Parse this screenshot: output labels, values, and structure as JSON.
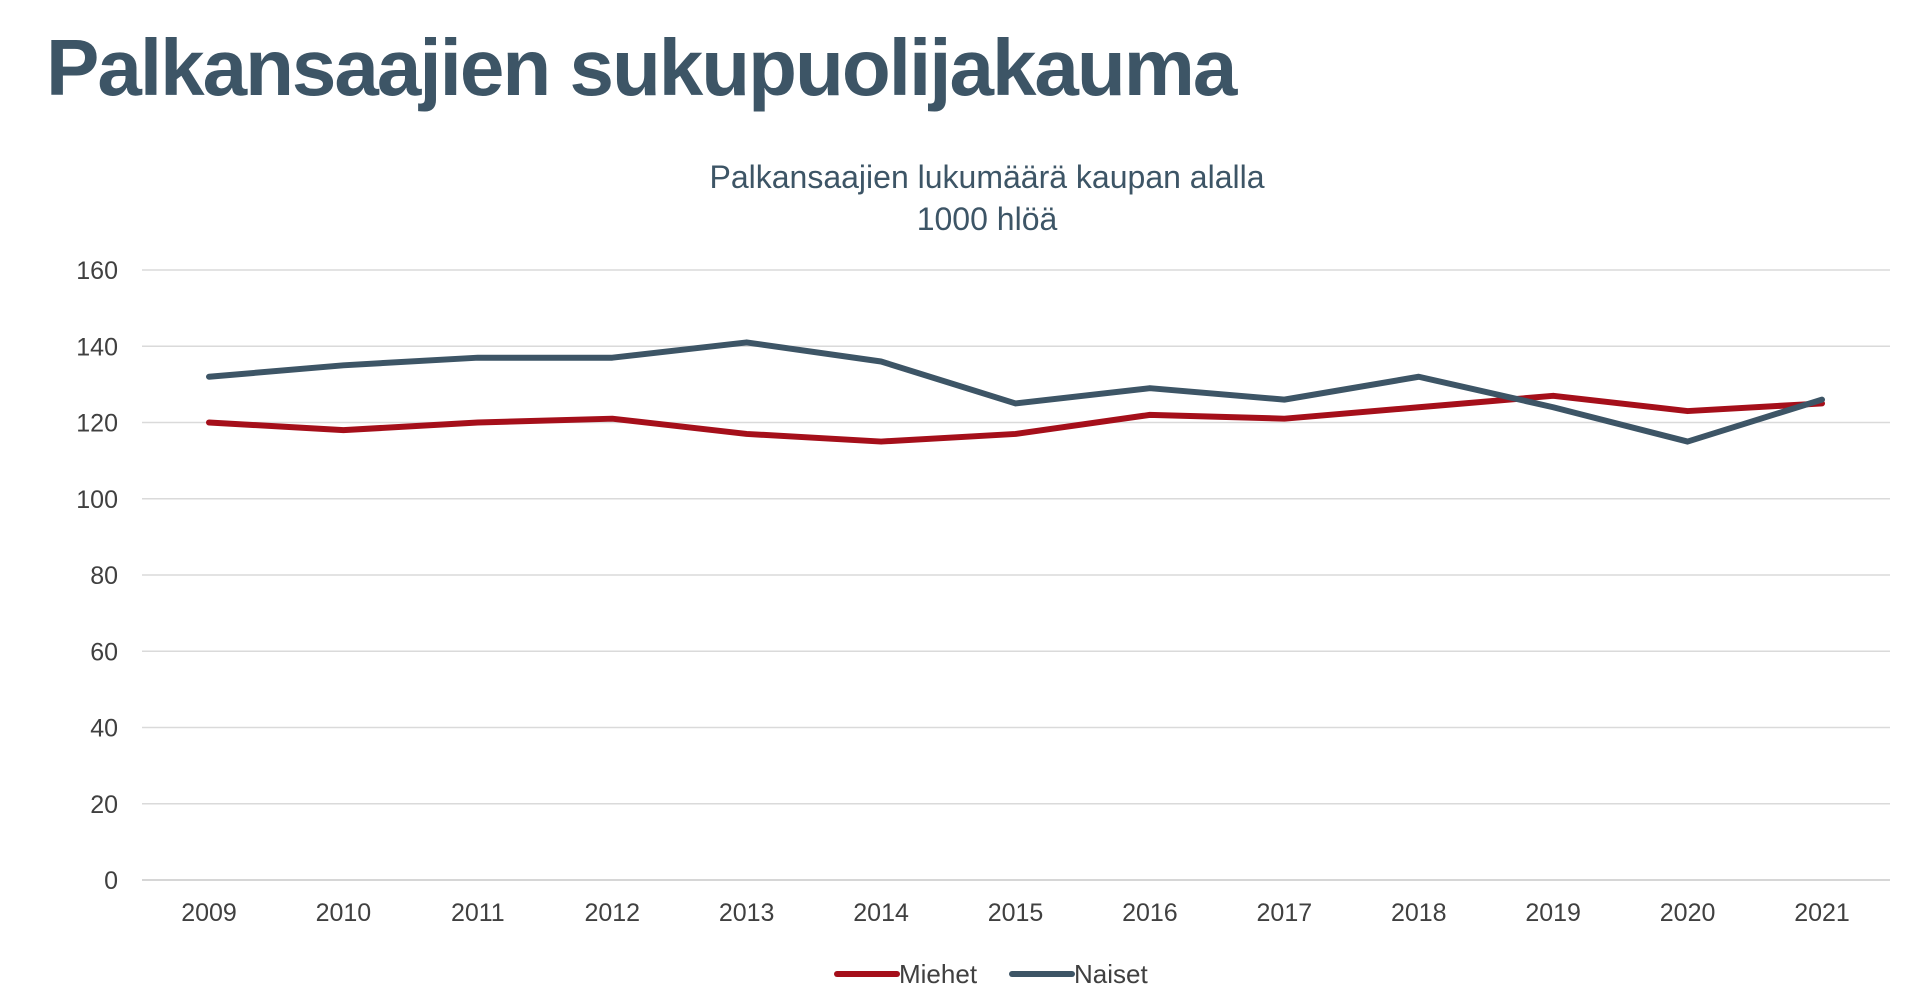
{
  "slide": {
    "title": "Palkansaajien sukupuolijakauma"
  },
  "chart_data": {
    "type": "line",
    "title": "Palkansaajien lukumäärä kaupan alalla",
    "subtitle": "1000 hlöä",
    "xlabel": "",
    "ylabel": "",
    "categories": [
      "2009",
      "2010",
      "2011",
      "2012",
      "2013",
      "2014",
      "2015",
      "2016",
      "2017",
      "2018",
      "2019",
      "2020",
      "2021"
    ],
    "ylim": [
      0,
      160
    ],
    "yticks": [
      0,
      20,
      40,
      60,
      80,
      100,
      120,
      140,
      160
    ],
    "grid": true,
    "legend_position": "bottom",
    "series": [
      {
        "name": "Miehet",
        "color": "#a50f1a",
        "values": [
          120,
          118,
          120,
          121,
          117,
          115,
          117,
          122,
          121,
          124,
          127,
          123,
          125
        ]
      },
      {
        "name": "Naiset",
        "color": "#3d5566",
        "values": [
          132,
          135,
          137,
          137,
          141,
          136,
          125,
          129,
          126,
          132,
          124,
          115,
          126
        ]
      }
    ]
  }
}
